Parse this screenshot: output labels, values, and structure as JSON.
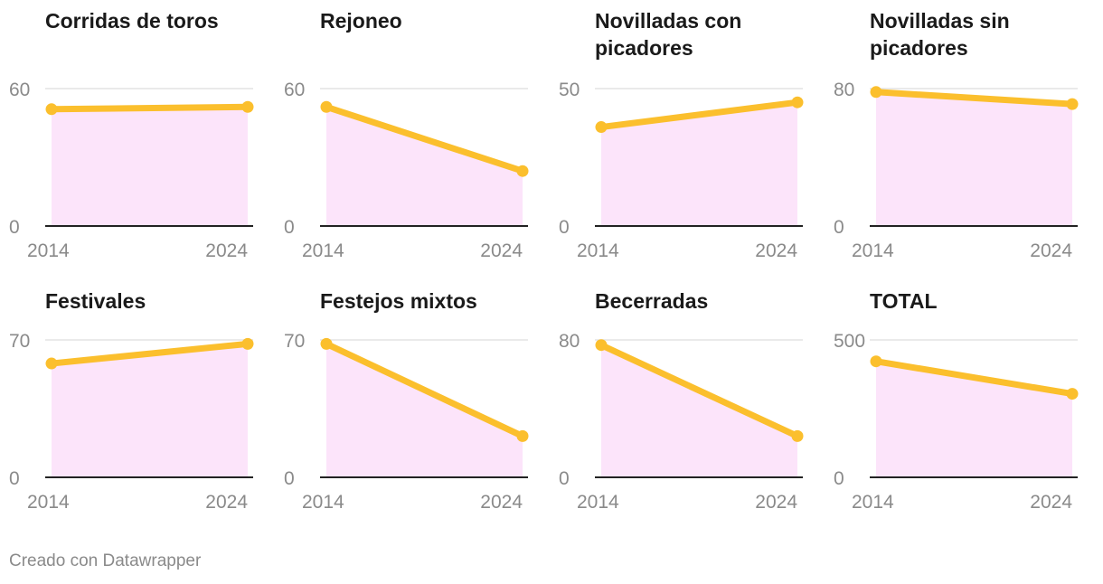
{
  "colors": {
    "line": "#fbbf2d",
    "area": "#fce4fa",
    "text": "#1a1a1a",
    "tick": "#8a8a8a"
  },
  "footer": "Creado con Datawrapper",
  "chart_data": [
    {
      "type": "area",
      "title": "Corridas de toros",
      "x": [
        "2014",
        "2024"
      ],
      "values": [
        51,
        52
      ],
      "ylim": [
        0,
        60
      ],
      "yticks": [
        "0",
        "60"
      ]
    },
    {
      "type": "area",
      "title": "Rejoneo",
      "x": [
        "2014",
        "2024"
      ],
      "values": [
        52,
        24
      ],
      "ylim": [
        0,
        60
      ],
      "yticks": [
        "0",
        "60"
      ]
    },
    {
      "type": "area",
      "title": "Novilladas con picadores",
      "x": [
        "2014",
        "2024"
      ],
      "values": [
        36,
        45
      ],
      "ylim": [
        0,
        50
      ],
      "yticks": [
        "0",
        "50"
      ]
    },
    {
      "type": "area",
      "title": "Novilladas sin picadores",
      "x": [
        "2014",
        "2024"
      ],
      "values": [
        78,
        71
      ],
      "ylim": [
        0,
        80
      ],
      "yticks": [
        "0",
        "80"
      ]
    },
    {
      "type": "area",
      "title": "Festivales",
      "x": [
        "2014",
        "2024"
      ],
      "values": [
        58,
        68
      ],
      "ylim": [
        0,
        70
      ],
      "yticks": [
        "0",
        "70"
      ]
    },
    {
      "type": "area",
      "title": "Festejos mixtos",
      "x": [
        "2014",
        "2024"
      ],
      "values": [
        68,
        21
      ],
      "ylim": [
        0,
        70
      ],
      "yticks": [
        "0",
        "70"
      ]
    },
    {
      "type": "area",
      "title": "Becerradas",
      "x": [
        "2014",
        "2024"
      ],
      "values": [
        77,
        24
      ],
      "ylim": [
        0,
        80
      ],
      "yticks": [
        "0",
        "80"
      ]
    },
    {
      "type": "area",
      "title": "TOTAL",
      "x": [
        "2014",
        "2024"
      ],
      "values": [
        422,
        304
      ],
      "ylim": [
        0,
        500
      ],
      "yticks": [
        "0",
        "500"
      ]
    }
  ]
}
